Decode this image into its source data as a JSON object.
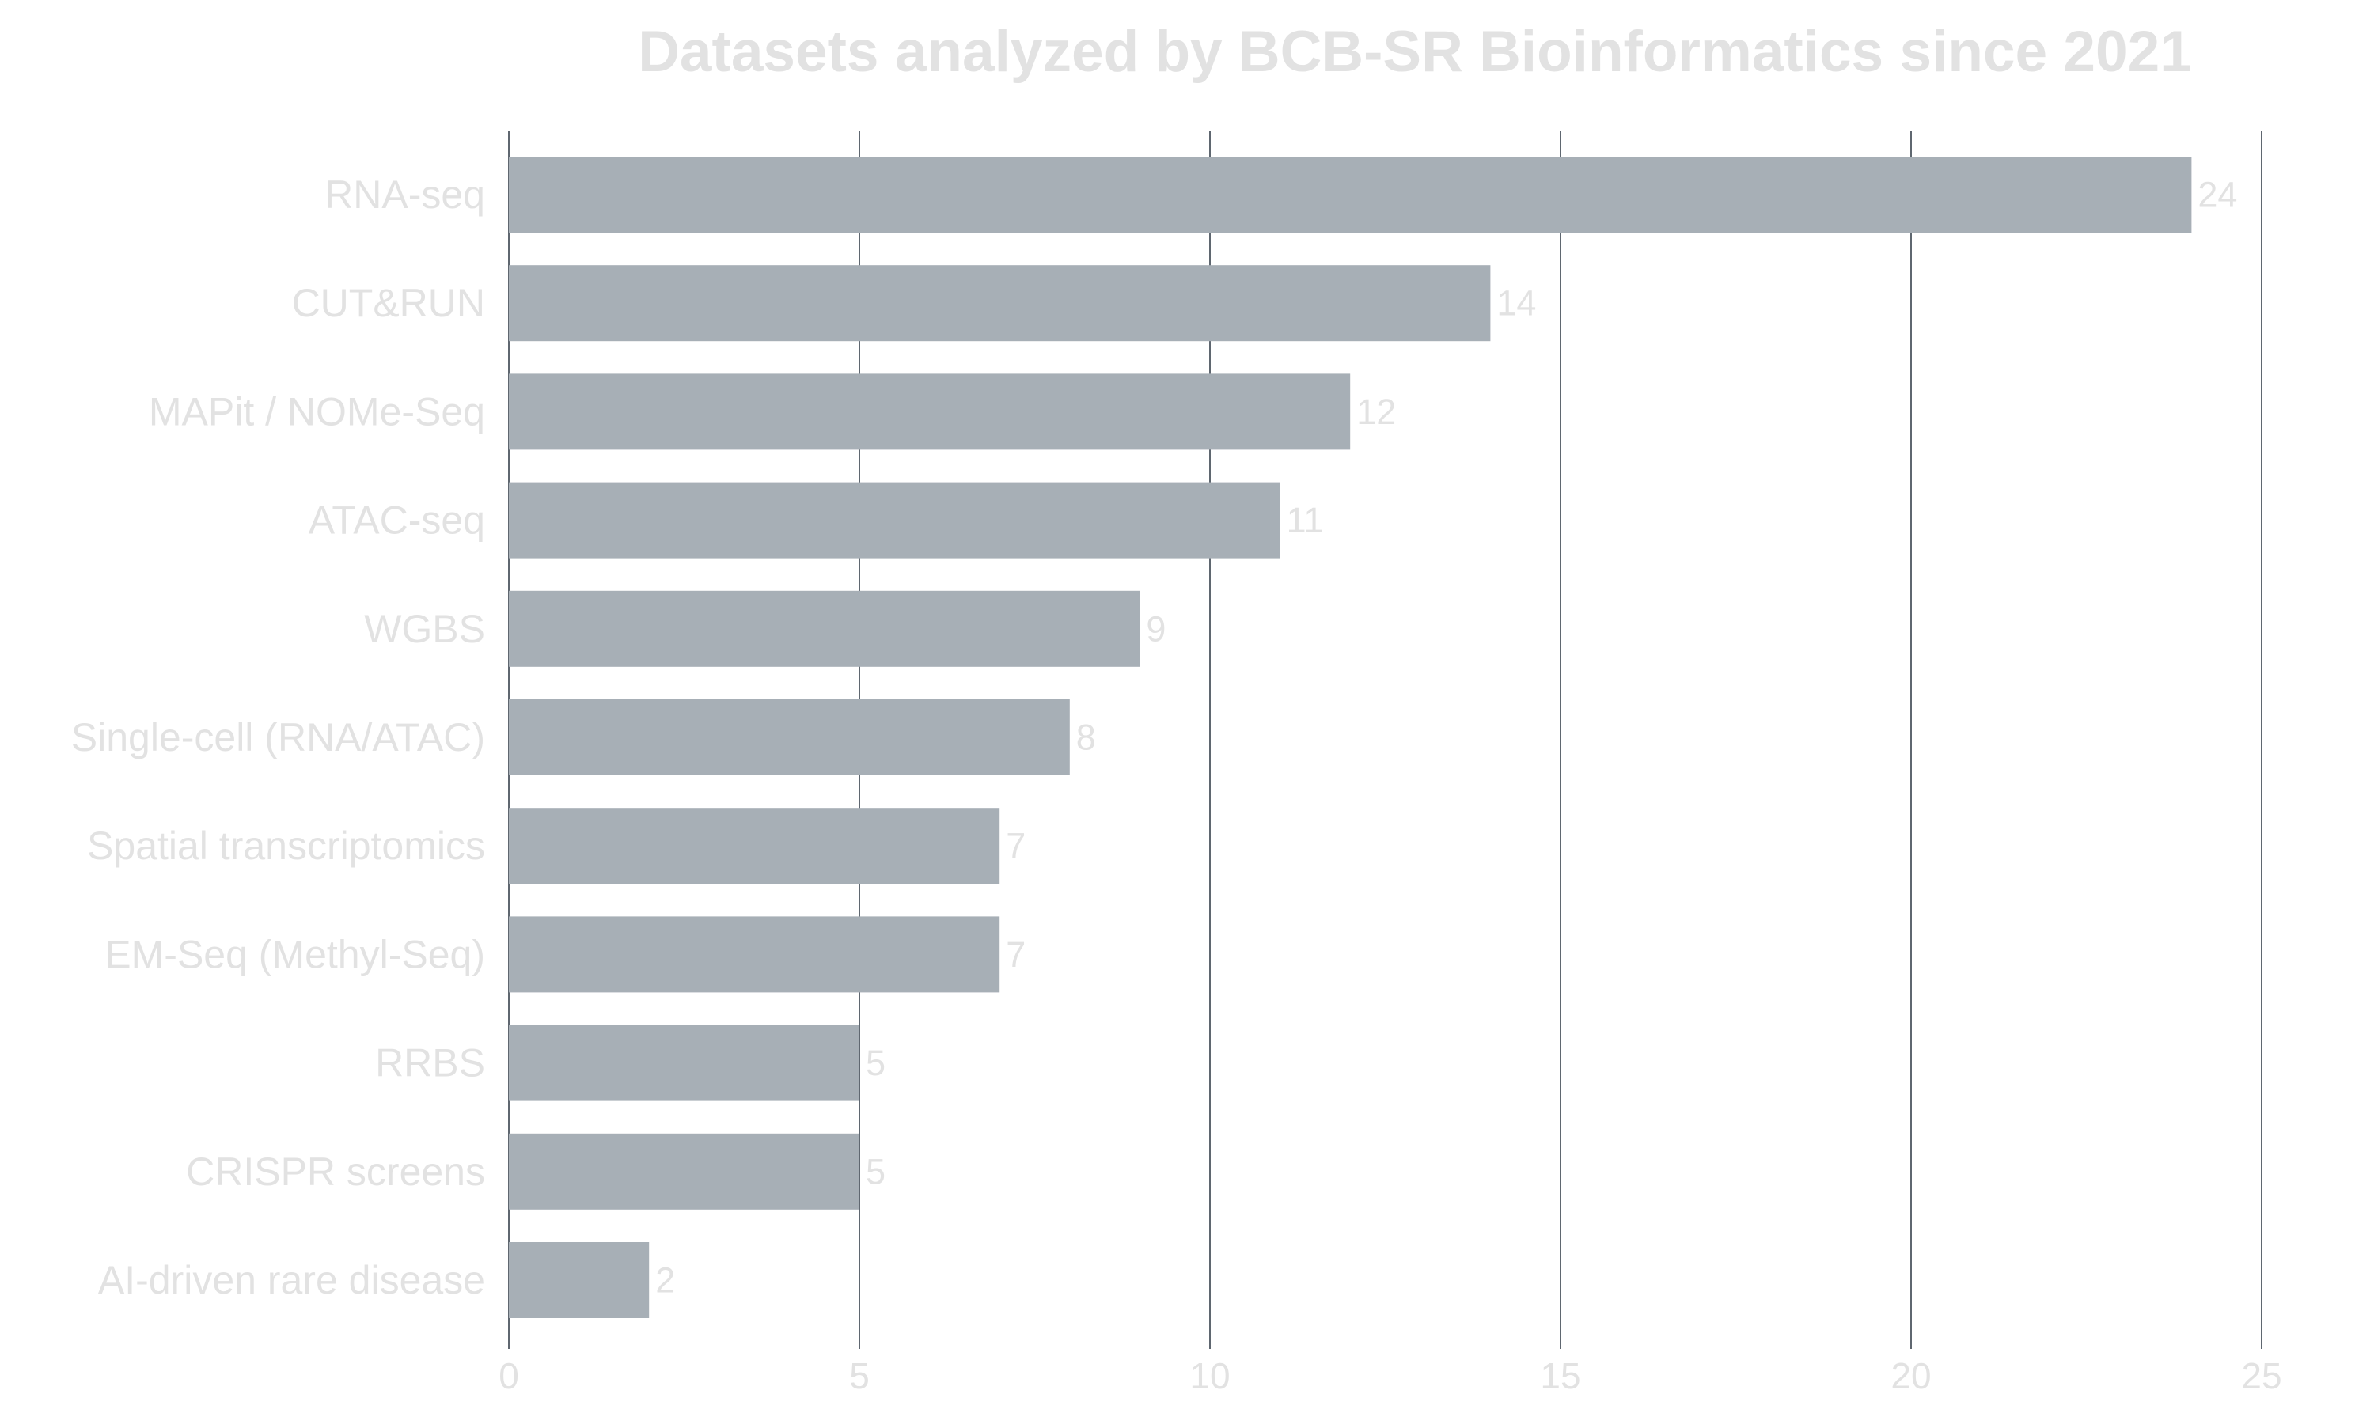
{
  "chart_data": {
    "type": "bar",
    "orientation": "horizontal",
    "title": "Datasets analyzed by BCB-SR Bioinformatics since 2021",
    "xlabel": "",
    "ylabel": "",
    "categories": [
      "RNA-seq",
      "CUT&RUN",
      "MAPit / NOMe-Seq",
      "ATAC-seq",
      "WGBS",
      "Single-cell (RNA/ATAC)",
      "Spatial transcriptomics",
      "EM-Seq (Methyl-Seq)",
      "RRBS",
      "CRISPR screens",
      "AI-driven rare disease"
    ],
    "values": [
      24,
      14,
      12,
      11,
      9,
      8,
      7,
      7,
      5,
      5,
      2
    ],
    "data_labels": [
      "24",
      "14",
      "12",
      "11",
      "9",
      "8",
      "7",
      "7",
      "5",
      "5",
      "2"
    ],
    "xlim": [
      0,
      25
    ],
    "xticks": [
      0,
      5,
      10,
      15,
      20,
      25
    ],
    "xtick_labels": [
      "0",
      "5",
      "10",
      "15",
      "20",
      "25"
    ],
    "grid": "vertical",
    "legend": "none",
    "colors": {
      "bar": "#a7afb6",
      "grid": "#5f6770",
      "text": "#e2e2e2",
      "background": "#ffffff"
    }
  }
}
